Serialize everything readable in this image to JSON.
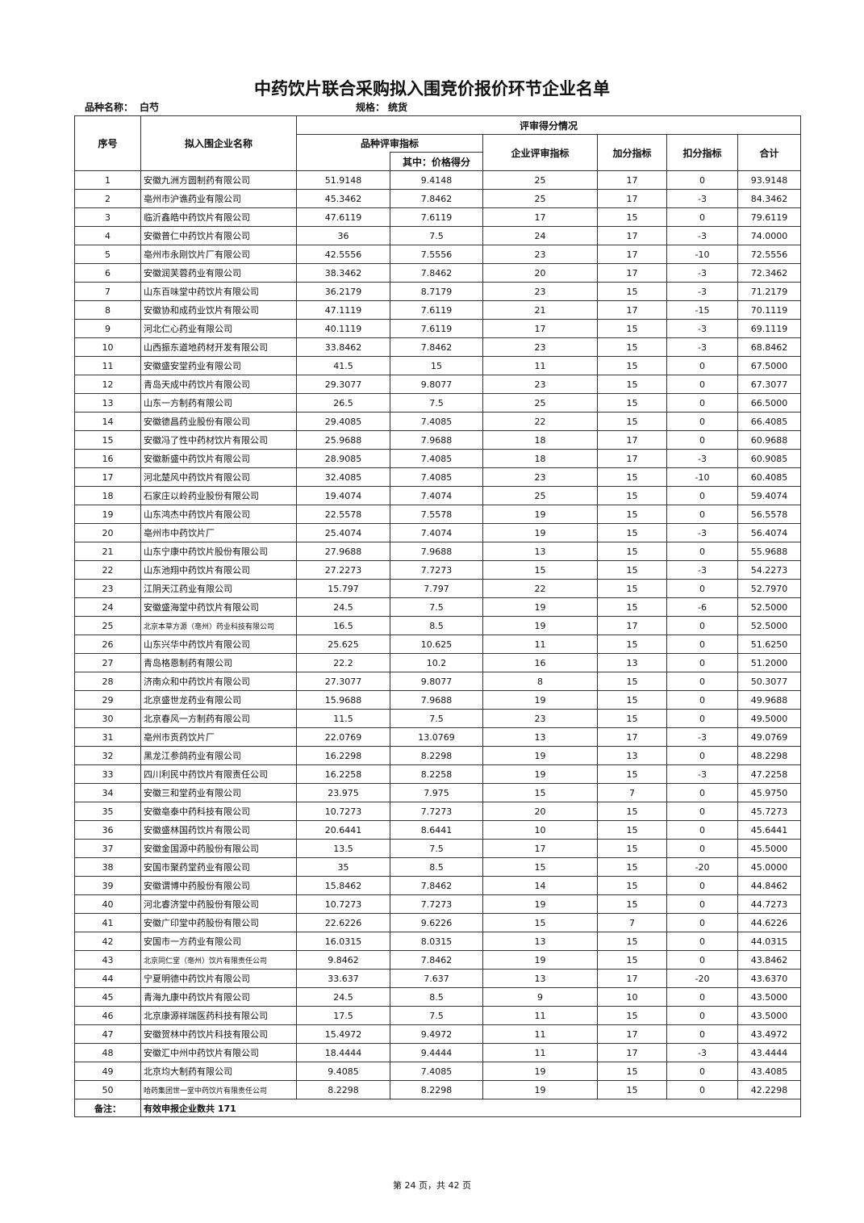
{
  "title": "中药饮片联合采购拟入围竞价报价环节企业名单",
  "variety_label": "品种名称：",
  "variety": "白芍",
  "spec_label": "规格：",
  "spec": "统货",
  "headers": {
    "no": "序号",
    "company": "拟入围企业名称",
    "group": "评审得分情况",
    "variety_index": "品种评审指标",
    "price_score": "其中：价格得分",
    "company_index": "企业评审指标",
    "bonus": "加分指标",
    "deduction": "扣分指标",
    "total": "合计"
  },
  "rows": [
    [
      "1",
      "安徽九洲方圆制药有限公司",
      "51.9148",
      "9.4148",
      "25",
      "17",
      "0",
      "93.9148"
    ],
    [
      "2",
      "亳州市沪谯药业有限公司",
      "45.3462",
      "7.8462",
      "25",
      "17",
      "-3",
      "84.3462"
    ],
    [
      "3",
      "临沂鑫皓中药饮片有限公司",
      "47.6119",
      "7.6119",
      "17",
      "15",
      "0",
      "79.6119"
    ],
    [
      "4",
      "安徽普仁中药饮片有限公司",
      "36",
      "7.5",
      "24",
      "17",
      "-3",
      "74.0000"
    ],
    [
      "5",
      "亳州市永刚饮片厂有限公司",
      "42.5556",
      "7.5556",
      "23",
      "17",
      "-10",
      "72.5556"
    ],
    [
      "6",
      "安徽润芙蓉药业有限公司",
      "38.3462",
      "7.8462",
      "20",
      "17",
      "-3",
      "72.3462"
    ],
    [
      "7",
      "山东百味堂中药饮片有限公司",
      "36.2179",
      "8.7179",
      "23",
      "15",
      "-3",
      "71.2179"
    ],
    [
      "8",
      "安徽协和成药业饮片有限公司",
      "47.1119",
      "7.6119",
      "21",
      "17",
      "-15",
      "70.1119"
    ],
    [
      "9",
      "河北仁心药业有限公司",
      "40.1119",
      "7.6119",
      "17",
      "15",
      "-3",
      "69.1119"
    ],
    [
      "10",
      "山西振东道地药材开发有限公司",
      "33.8462",
      "7.8462",
      "23",
      "15",
      "-3",
      "68.8462"
    ],
    [
      "11",
      "安徽盛安堂药业有限公司",
      "41.5",
      "15",
      "11",
      "15",
      "0",
      "67.5000"
    ],
    [
      "12",
      "青岛天成中药饮片有限公司",
      "29.3077",
      "9.8077",
      "23",
      "15",
      "0",
      "67.3077"
    ],
    [
      "13",
      "山东一方制药有限公司",
      "26.5",
      "7.5",
      "25",
      "15",
      "0",
      "66.5000"
    ],
    [
      "14",
      "安徽德昌药业股份有限公司",
      "29.4085",
      "7.4085",
      "22",
      "15",
      "0",
      "66.4085"
    ],
    [
      "15",
      "安徽冯了性中药材饮片有限公司",
      "25.9688",
      "7.9688",
      "18",
      "17",
      "0",
      "60.9688"
    ],
    [
      "16",
      "安徽新盛中药饮片有限公司",
      "28.9085",
      "7.4085",
      "18",
      "17",
      "-3",
      "60.9085"
    ],
    [
      "17",
      "河北楚风中药饮片有限公司",
      "32.4085",
      "7.4085",
      "23",
      "15",
      "-10",
      "60.4085"
    ],
    [
      "18",
      "石家庄以岭药业股份有限公司",
      "19.4074",
      "7.4074",
      "25",
      "15",
      "0",
      "59.4074"
    ],
    [
      "19",
      "山东鸿杰中药饮片有限公司",
      "22.5578",
      "7.5578",
      "19",
      "15",
      "0",
      "56.5578"
    ],
    [
      "20",
      "亳州市中药饮片厂",
      "25.4074",
      "7.4074",
      "19",
      "15",
      "-3",
      "56.4074"
    ],
    [
      "21",
      "山东宁康中药饮片股份有限公司",
      "27.9688",
      "7.9688",
      "13",
      "15",
      "0",
      "55.9688"
    ],
    [
      "22",
      "山东池翔中药饮片有限公司",
      "27.2273",
      "7.7273",
      "15",
      "15",
      "-3",
      "54.2273"
    ],
    [
      "23",
      "江阴天江药业有限公司",
      "15.797",
      "7.797",
      "22",
      "15",
      "0",
      "52.7970"
    ],
    [
      "24",
      "安徽盛海堂中药饮片有限公司",
      "24.5",
      "7.5",
      "19",
      "15",
      "-6",
      "52.5000"
    ],
    [
      "25",
      "北京本草方源（亳州）药业科技有限公司",
      "16.5",
      "8.5",
      "19",
      "17",
      "0",
      "52.5000"
    ],
    [
      "26",
      "山东兴华中药饮片有限公司",
      "25.625",
      "10.625",
      "11",
      "15",
      "0",
      "51.6250"
    ],
    [
      "27",
      "青岛格恩制药有限公司",
      "22.2",
      "10.2",
      "16",
      "13",
      "0",
      "51.2000"
    ],
    [
      "28",
      "济南众和中药饮片有限公司",
      "27.3077",
      "9.8077",
      "8",
      "15",
      "0",
      "50.3077"
    ],
    [
      "29",
      "北京盛世龙药业有限公司",
      "15.9688",
      "7.9688",
      "19",
      "15",
      "0",
      "49.9688"
    ],
    [
      "30",
      "北京春风一方制药有限公司",
      "11.5",
      "7.5",
      "23",
      "15",
      "0",
      "49.5000"
    ],
    [
      "31",
      "亳州市贡药饮片厂",
      "22.0769",
      "13.0769",
      "13",
      "17",
      "-3",
      "49.0769"
    ],
    [
      "32",
      "黑龙江参鸽药业有限公司",
      "16.2298",
      "8.2298",
      "19",
      "13",
      "0",
      "48.2298"
    ],
    [
      "33",
      "四川利民中药饮片有限责任公司",
      "16.2258",
      "8.2258",
      "19",
      "15",
      "-3",
      "47.2258"
    ],
    [
      "34",
      "安徽三和堂药业有限公司",
      "23.975",
      "7.975",
      "15",
      "7",
      "0",
      "45.9750"
    ],
    [
      "35",
      "安徽亳泰中药科技有限公司",
      "10.7273",
      "7.7273",
      "20",
      "15",
      "0",
      "45.7273"
    ],
    [
      "36",
      "安徽盛林国药饮片有限公司",
      "20.6441",
      "8.6441",
      "10",
      "15",
      "0",
      "45.6441"
    ],
    [
      "37",
      "安徽金国源中药股份有限公司",
      "13.5",
      "7.5",
      "17",
      "15",
      "0",
      "45.5000"
    ],
    [
      "38",
      "安国市聚药堂药业有限公司",
      "35",
      "8.5",
      "15",
      "15",
      "-20",
      "45.0000"
    ],
    [
      "39",
      "安徽谓博中药股份有限公司",
      "15.8462",
      "7.8462",
      "14",
      "15",
      "0",
      "44.8462"
    ],
    [
      "40",
      "河北睿济堂中药股份有限公司",
      "10.7273",
      "7.7273",
      "19",
      "15",
      "0",
      "44.7273"
    ],
    [
      "41",
      "安徽广印堂中药股份有限公司",
      "22.6226",
      "9.6226",
      "15",
      "7",
      "0",
      "44.6226"
    ],
    [
      "42",
      "安国市一方药业有限公司",
      "16.0315",
      "8.0315",
      "13",
      "15",
      "0",
      "44.0315"
    ],
    [
      "43",
      "北京同仁堂（亳州）饮片有限责任公司",
      "9.8462",
      "7.8462",
      "19",
      "15",
      "0",
      "43.8462"
    ],
    [
      "44",
      "宁夏明德中药饮片有限公司",
      "33.637",
      "7.637",
      "13",
      "17",
      "-20",
      "43.6370"
    ],
    [
      "45",
      "青海九康中药饮片有限公司",
      "24.5",
      "8.5",
      "9",
      "10",
      "0",
      "43.5000"
    ],
    [
      "46",
      "北京康源祥瑞医药科技有限公司",
      "17.5",
      "7.5",
      "11",
      "15",
      "0",
      "43.5000"
    ],
    [
      "47",
      "安徽贺林中药饮片科技有限公司",
      "15.4972",
      "9.4972",
      "11",
      "17",
      "0",
      "43.4972"
    ],
    [
      "48",
      "安徽汇中州中药饮片有限公司",
      "18.4444",
      "9.4444",
      "11",
      "17",
      "-3",
      "43.4444"
    ],
    [
      "49",
      "北京均大制药有限公司",
      "9.4085",
      "7.4085",
      "19",
      "15",
      "0",
      "43.4085"
    ],
    [
      "50",
      "哈药集团世一堂中药饮片有限责任公司",
      "8.2298",
      "8.2298",
      "19",
      "15",
      "0",
      "42.2298"
    ]
  ],
  "remark_label": "备注：",
  "remark": "有效申报企业数共 171",
  "footer": "第 24 页，共 42 页"
}
